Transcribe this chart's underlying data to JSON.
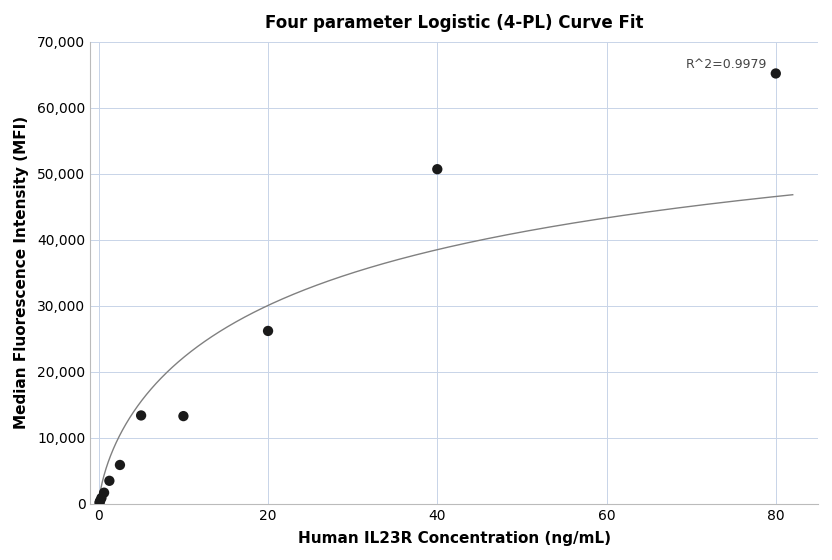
{
  "title": "Four parameter Logistic (4-PL) Curve Fit",
  "xlabel": "Human IL23R Concentration (ng/mL)",
  "ylabel": "Median Fluorescence Intensity (MFI)",
  "r_squared_text": "R^2=0.9979",
  "data_points_x": [
    0.078125,
    0.15625,
    0.3125,
    0.625,
    1.25,
    2.5,
    5.0,
    10.0,
    20.0,
    40.0,
    80.0
  ],
  "data_points_y": [
    200,
    450,
    900,
    1700,
    3500,
    5900,
    13400,
    13300,
    26200,
    50700,
    65200
  ],
  "xlim": [
    -1,
    85
  ],
  "ylim": [
    0,
    70000
  ],
  "yticks": [
    0,
    10000,
    20000,
    30000,
    40000,
    50000,
    60000,
    70000
  ],
  "xticks": [
    0,
    20,
    40,
    60,
    80
  ],
  "background_color": "#ffffff",
  "grid_color": "#c8d4e8",
  "dot_color": "#1a1a1a",
  "line_color": "#808080",
  "dot_size": 55,
  "title_fontsize": 12,
  "axis_label_fontsize": 11,
  "tick_fontsize": 10,
  "annotation_fontsize": 9
}
